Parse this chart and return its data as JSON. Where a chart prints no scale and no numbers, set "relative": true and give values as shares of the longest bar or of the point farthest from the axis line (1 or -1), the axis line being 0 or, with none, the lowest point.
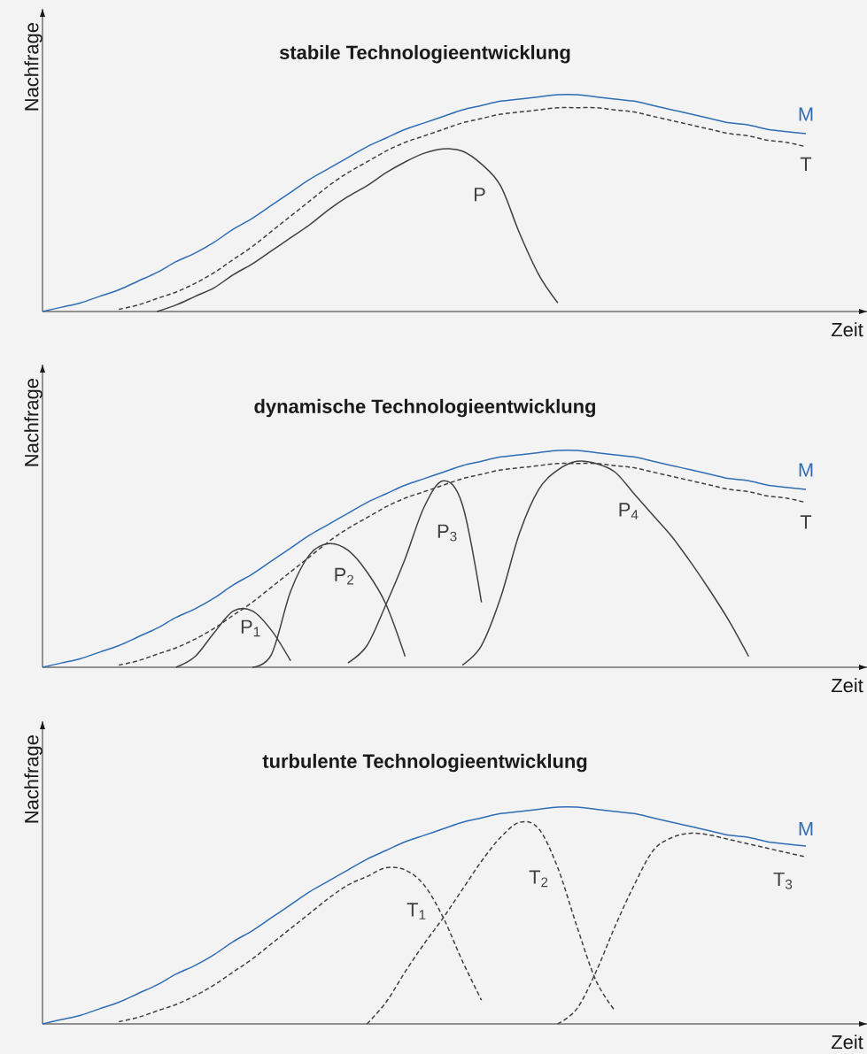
{
  "chart_data": [
    {
      "type": "line",
      "title": "stabile Technologieentwicklung",
      "xlabel": "Zeit",
      "ylabel": "Nachfrage",
      "relative": true,
      "categories": [
        null,
        null,
        null,
        null,
        null,
        null,
        null,
        null,
        null,
        null,
        null,
        null,
        null,
        null,
        null,
        null,
        null,
        null,
        null,
        null,
        null,
        null,
        null,
        null,
        null,
        null,
        null,
        null,
        null,
        null,
        null,
        null,
        null,
        null,
        null,
        null,
        null,
        null,
        null,
        null,
        null
      ],
      "series": [
        {
          "name": "M",
          "color": "#2e6db4",
          "values": [
            0,
            0.02,
            0.04,
            0.07,
            0.1,
            0.14,
            0.18,
            0.23,
            0.27,
            0.32,
            0.38,
            0.43,
            0.49,
            0.55,
            0.61,
            0.66,
            0.71,
            0.76,
            0.8,
            0.84,
            0.87,
            0.9,
            0.93,
            0.95,
            0.97,
            0.98,
            0.99,
            1.0,
            1.0,
            0.99,
            0.98,
            0.97,
            0.95,
            0.93,
            0.91,
            0.89,
            0.87,
            0.86,
            0.84,
            0.83,
            0.82
          ]
        },
        {
          "name": "T",
          "color": "#404040",
          "line_style": "dashed",
          "values": [
            null,
            null,
            null,
            null,
            0.01,
            0.03,
            0.06,
            0.09,
            0.13,
            0.18,
            0.24,
            0.3,
            0.37,
            0.44,
            0.51,
            0.58,
            0.64,
            0.69,
            0.74,
            0.78,
            0.81,
            0.84,
            0.87,
            0.89,
            0.91,
            0.92,
            0.93,
            0.94,
            0.94,
            0.94,
            0.93,
            0.92,
            0.9,
            0.88,
            0.86,
            0.84,
            0.82,
            0.81,
            0.79,
            0.78,
            0.76
          ]
        },
        {
          "name": "P",
          "color": "#404040",
          "values": [
            null,
            null,
            null,
            null,
            null,
            null,
            0,
            0.03,
            0.07,
            0.11,
            0.17,
            0.22,
            0.28,
            0.34,
            0.4,
            0.47,
            0.53,
            0.58,
            0.64,
            0.69,
            0.73,
            0.75,
            0.74,
            0.68,
            0.58,
            0.36,
            0.17,
            0.04,
            null,
            null,
            null,
            null,
            null,
            null,
            null,
            null,
            null,
            null,
            null,
            null,
            null
          ]
        }
      ]
    },
    {
      "type": "line",
      "title": "dynamische Technologieentwicklung",
      "xlabel": "Zeit",
      "ylabel": "Nachfrage",
      "relative": true,
      "categories": [
        null,
        null,
        null,
        null,
        null,
        null,
        null,
        null,
        null,
        null,
        null,
        null,
        null,
        null,
        null,
        null,
        null,
        null,
        null,
        null,
        null,
        null,
        null,
        null,
        null,
        null,
        null,
        null,
        null,
        null,
        null,
        null,
        null,
        null,
        null,
        null,
        null,
        null,
        null,
        null,
        null
      ],
      "series": [
        {
          "name": "M",
          "color": "#2e6db4",
          "values": [
            0,
            0.02,
            0.04,
            0.07,
            0.1,
            0.14,
            0.18,
            0.23,
            0.27,
            0.32,
            0.38,
            0.43,
            0.49,
            0.55,
            0.61,
            0.66,
            0.71,
            0.76,
            0.8,
            0.84,
            0.87,
            0.9,
            0.93,
            0.95,
            0.97,
            0.98,
            0.99,
            1.0,
            1.0,
            0.99,
            0.98,
            0.97,
            0.95,
            0.93,
            0.91,
            0.89,
            0.87,
            0.86,
            0.84,
            0.83,
            0.82
          ]
        },
        {
          "name": "T",
          "color": "#404040",
          "line_style": "dashed",
          "values": [
            null,
            null,
            null,
            null,
            0.01,
            0.03,
            0.06,
            0.09,
            0.13,
            0.18,
            0.24,
            0.3,
            0.37,
            0.44,
            0.51,
            0.58,
            0.64,
            0.69,
            0.74,
            0.78,
            0.81,
            0.84,
            0.87,
            0.89,
            0.91,
            0.92,
            0.93,
            0.94,
            0.94,
            0.94,
            0.93,
            0.92,
            0.9,
            0.88,
            0.86,
            0.84,
            0.82,
            0.81,
            0.79,
            0.78,
            0.76
          ]
        },
        {
          "name": "P$_{1}$",
          "color": "#404040",
          "values": [
            null,
            null,
            null,
            null,
            null,
            null,
            null,
            0,
            0.05,
            0.16,
            0.26,
            0.26,
            0.17,
            0.03,
            null,
            null,
            null,
            null,
            null,
            null,
            null,
            null,
            null,
            null,
            null,
            null,
            null,
            null,
            null,
            null,
            null,
            null,
            null,
            null,
            null,
            null,
            null,
            null,
            null,
            null,
            null
          ]
        },
        {
          "name": "P$_{2}$",
          "color": "#404040",
          "values": [
            null,
            null,
            null,
            null,
            null,
            null,
            null,
            null,
            null,
            null,
            null,
            0,
            0.06,
            0.35,
            0.52,
            0.57,
            0.54,
            0.44,
            0.29,
            0.05,
            null,
            null,
            null,
            null,
            null,
            null,
            null,
            null,
            null,
            null,
            null,
            null,
            null,
            null,
            null,
            null,
            null,
            null,
            null,
            null,
            null
          ]
        },
        {
          "name": "P$_{3}$",
          "color": "#404040",
          "values": [
            null,
            null,
            null,
            null,
            null,
            null,
            null,
            null,
            null,
            null,
            null,
            null,
            null,
            null,
            null,
            null,
            0.02,
            0.1,
            0.29,
            0.5,
            0.74,
            0.86,
            0.75,
            0.3,
            null,
            null,
            null,
            null,
            null,
            null,
            null,
            null,
            null,
            null,
            null,
            null,
            null,
            null,
            null,
            null,
            null
          ]
        },
        {
          "name": "P$_{4}$",
          "color": "#404040",
          "values": [
            null,
            null,
            null,
            null,
            null,
            null,
            null,
            null,
            null,
            null,
            null,
            null,
            null,
            null,
            null,
            null,
            null,
            null,
            null,
            null,
            null,
            null,
            0.01,
            0.1,
            0.32,
            0.62,
            0.82,
            0.91,
            0.95,
            0.94,
            0.9,
            0.8,
            0.7,
            0.6,
            0.48,
            0.35,
            0.21,
            0.05,
            null,
            null,
            null
          ]
        }
      ]
    },
    {
      "type": "line",
      "title": "turbulente Technologieentwicklung",
      "xlabel": "Zeit",
      "ylabel": "Nachfrage",
      "relative": true,
      "categories": [
        null,
        null,
        null,
        null,
        null,
        null,
        null,
        null,
        null,
        null,
        null,
        null,
        null,
        null,
        null,
        null,
        null,
        null,
        null,
        null,
        null,
        null,
        null,
        null,
        null,
        null,
        null,
        null,
        null,
        null,
        null,
        null,
        null,
        null,
        null,
        null,
        null,
        null,
        null,
        null,
        null
      ],
      "series": [
        {
          "name": "M",
          "color": "#2e6db4",
          "values": [
            0,
            0.02,
            0.04,
            0.07,
            0.1,
            0.14,
            0.18,
            0.23,
            0.27,
            0.32,
            0.38,
            0.43,
            0.49,
            0.55,
            0.61,
            0.66,
            0.71,
            0.76,
            0.8,
            0.84,
            0.87,
            0.9,
            0.93,
            0.95,
            0.97,
            0.98,
            0.99,
            1.0,
            1.0,
            0.99,
            0.98,
            0.97,
            0.95,
            0.93,
            0.91,
            0.89,
            0.87,
            0.86,
            0.84,
            0.83,
            0.82
          ]
        },
        {
          "name": "T$_{1}$",
          "color": "#404040",
          "line_style": "dashed",
          "values": [
            null,
            null,
            null,
            null,
            0.01,
            0.03,
            0.06,
            0.09,
            0.13,
            0.18,
            0.24,
            0.3,
            0.37,
            0.44,
            0.51,
            0.58,
            0.64,
            0.68,
            0.72,
            0.71,
            0.64,
            0.49,
            0.29,
            0.11,
            null,
            null,
            null,
            null,
            null,
            null,
            null,
            null,
            null,
            null,
            null,
            null,
            null,
            null,
            null,
            null,
            null
          ]
        },
        {
          "name": "T$_{2}$",
          "color": "#404040",
          "line_style": "dashed",
          "values": [
            null,
            null,
            null,
            null,
            null,
            null,
            null,
            null,
            null,
            null,
            null,
            null,
            null,
            null,
            null,
            null,
            null,
            0,
            0.1,
            0.24,
            0.37,
            0.49,
            0.62,
            0.75,
            0.86,
            0.93,
            0.9,
            0.72,
            0.45,
            0.2,
            0.06,
            null,
            null,
            null,
            null,
            null,
            null,
            null,
            null,
            null,
            null
          ]
        },
        {
          "name": "T$_{3}$",
          "color": "#404040",
          "line_style": "dashed",
          "values": [
            null,
            null,
            null,
            null,
            null,
            null,
            null,
            null,
            null,
            null,
            null,
            null,
            null,
            null,
            null,
            null,
            null,
            null,
            null,
            null,
            null,
            null,
            null,
            null,
            null,
            null,
            null,
            0,
            0.07,
            0.24,
            0.45,
            0.64,
            0.8,
            0.86,
            0.88,
            0.87,
            0.85,
            0.83,
            0.81,
            0.79,
            0.77
          ]
        }
      ]
    }
  ]
}
